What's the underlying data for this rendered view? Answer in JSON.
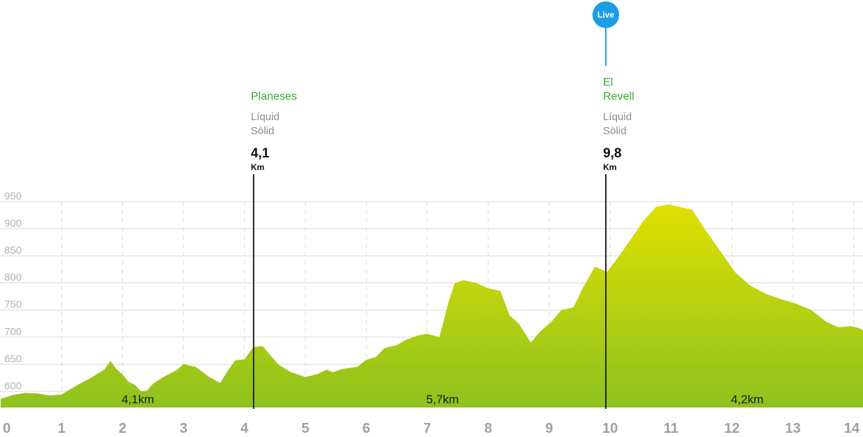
{
  "chart_data": {
    "type": "area",
    "title": "",
    "xlabel": "",
    "ylabel": "",
    "xlim": [
      0,
      14.15
    ],
    "ylim": [
      570,
      950
    ],
    "x_ticks": [
      "0",
      "1",
      "2",
      "3",
      "4",
      "5",
      "6",
      "7",
      "8",
      "9",
      "10",
      "11",
      "12",
      "13",
      "14"
    ],
    "y_ticks": [
      "600",
      "650",
      "700",
      "750",
      "800",
      "850",
      "900",
      "950"
    ],
    "grid": true,
    "series": [
      {
        "points": [
          [
            0,
            586
          ],
          [
            0.2,
            593
          ],
          [
            0.4,
            597
          ],
          [
            0.6,
            596
          ],
          [
            0.8,
            592
          ],
          [
            1.0,
            594
          ],
          [
            1.1,
            601
          ],
          [
            1.3,
            614
          ],
          [
            1.5,
            626
          ],
          [
            1.7,
            640
          ],
          [
            1.8,
            656
          ],
          [
            1.9,
            641
          ],
          [
            2.0,
            631
          ],
          [
            2.1,
            617
          ],
          [
            2.2,
            612
          ],
          [
            2.3,
            600
          ],
          [
            2.4,
            601
          ],
          [
            2.5,
            614
          ],
          [
            2.65,
            625
          ],
          [
            2.9,
            640
          ],
          [
            3.0,
            650
          ],
          [
            3.2,
            645
          ],
          [
            3.4,
            628
          ],
          [
            3.6,
            615
          ],
          [
            3.75,
            642
          ],
          [
            3.85,
            657
          ],
          [
            4.0,
            659
          ],
          [
            4.15,
            682
          ],
          [
            4.3,
            683
          ],
          [
            4.4,
            670
          ],
          [
            4.55,
            650
          ],
          [
            4.75,
            636
          ],
          [
            5.0,
            626
          ],
          [
            5.2,
            632
          ],
          [
            5.35,
            640
          ],
          [
            5.45,
            635
          ],
          [
            5.6,
            641
          ],
          [
            5.85,
            645
          ],
          [
            6.0,
            658
          ],
          [
            6.15,
            663
          ],
          [
            6.3,
            680
          ],
          [
            6.5,
            685
          ],
          [
            6.65,
            695
          ],
          [
            6.85,
            703
          ],
          [
            7.0,
            706
          ],
          [
            7.2,
            700
          ],
          [
            7.35,
            765
          ],
          [
            7.45,
            800
          ],
          [
            7.6,
            805
          ],
          [
            7.8,
            800
          ],
          [
            8.0,
            790
          ],
          [
            8.2,
            785
          ],
          [
            8.35,
            740
          ],
          [
            8.5,
            725
          ],
          [
            8.7,
            690
          ],
          [
            8.85,
            710
          ],
          [
            9.05,
            730
          ],
          [
            9.2,
            750
          ],
          [
            9.4,
            755
          ],
          [
            9.55,
            790
          ],
          [
            9.75,
            830
          ],
          [
            9.95,
            820
          ],
          [
            10.15,
            850
          ],
          [
            10.35,
            882
          ],
          [
            10.55,
            915
          ],
          [
            10.75,
            940
          ],
          [
            10.95,
            945
          ],
          [
            11.15,
            940
          ],
          [
            11.35,
            935
          ],
          [
            11.55,
            900
          ],
          [
            11.8,
            860
          ],
          [
            12.05,
            820
          ],
          [
            12.3,
            795
          ],
          [
            12.55,
            780
          ],
          [
            12.8,
            770
          ],
          [
            13.05,
            762
          ],
          [
            13.3,
            750
          ],
          [
            13.55,
            728
          ],
          [
            13.75,
            718
          ],
          [
            13.95,
            720
          ],
          [
            14.1,
            716
          ],
          [
            14.15,
            712
          ]
        ]
      }
    ]
  },
  "segments": [
    {
      "label": "4,1km",
      "x": 2.25
    },
    {
      "label": "5,7km",
      "x": 7.25
    },
    {
      "label": "4,2km",
      "x": 12.25
    }
  ],
  "checkpoints": [
    {
      "name_lines": [
        "Planeses"
      ],
      "sub": [
        "Líquid",
        "Sòlid"
      ],
      "km": "4,1",
      "unit": "Km",
      "x": 4.15
    },
    {
      "name_lines": [
        "El",
        "Revell"
      ],
      "sub": [
        "Líquid",
        "Sòlid"
      ],
      "km": "9,8",
      "unit": "Km",
      "x": 9.93
    }
  ],
  "live": {
    "label": "Live",
    "x": 9.93,
    "color": "#1a9ee6"
  },
  "colors": {
    "fill_top": "#dfe000",
    "fill_bottom": "#8ec21f",
    "grid": "#d8d8d8",
    "checkpoint_line": "#222222",
    "checkpoint_name": "#3aaa35"
  }
}
